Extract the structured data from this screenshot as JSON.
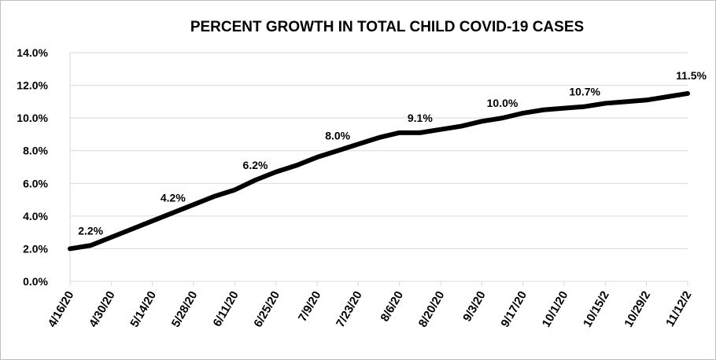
{
  "chart_data": {
    "type": "line",
    "title": "PERCENT GROWTH IN TOTAL CHILD COVID-19 CASES",
    "xlabel": "",
    "ylabel": "",
    "ylim": [
      0,
      14
    ],
    "y_ticks": [
      "0.0%",
      "2.0%",
      "4.0%",
      "6.0%",
      "8.0%",
      "10.0%",
      "12.0%",
      "14.0%"
    ],
    "y_tick_values": [
      0,
      2,
      4,
      6,
      8,
      10,
      12,
      14
    ],
    "x_tick_labels": [
      "4/16/20",
      "4/30/20",
      "5/14/20",
      "5/28/20",
      "6/11/20",
      "6/25/20",
      "7/9/20",
      "7/23/20",
      "8/6/20",
      "8/20/20",
      "9/3/20",
      "9/17/20",
      "10/1/20",
      "10/15/2",
      "10/29/2",
      "11/12/2"
    ],
    "grid": true,
    "legend": "none",
    "series": [
      {
        "values": [
          2.0,
          2.2,
          2.7,
          3.2,
          3.7,
          4.2,
          4.7,
          5.2,
          5.6,
          6.2,
          6.7,
          7.1,
          7.6,
          8.0,
          8.4,
          8.8,
          9.1,
          9.1,
          9.3,
          9.5,
          9.8,
          10.0,
          10.3,
          10.5,
          10.6,
          10.7,
          10.9,
          11.0,
          11.1,
          11.3,
          11.5
        ],
        "color": "#000000"
      }
    ],
    "data_labels": [
      {
        "index": 1,
        "text": "2.2%"
      },
      {
        "index": 5,
        "text": "4.2%"
      },
      {
        "index": 9,
        "text": "6.2%"
      },
      {
        "index": 13,
        "text": "8.0%"
      },
      {
        "index": 17,
        "text": "9.1%"
      },
      {
        "index": 21,
        "text": "10.0%"
      },
      {
        "index": 25,
        "text": "10.7%"
      },
      {
        "index": 30,
        "text": "11.5%"
      }
    ]
  }
}
